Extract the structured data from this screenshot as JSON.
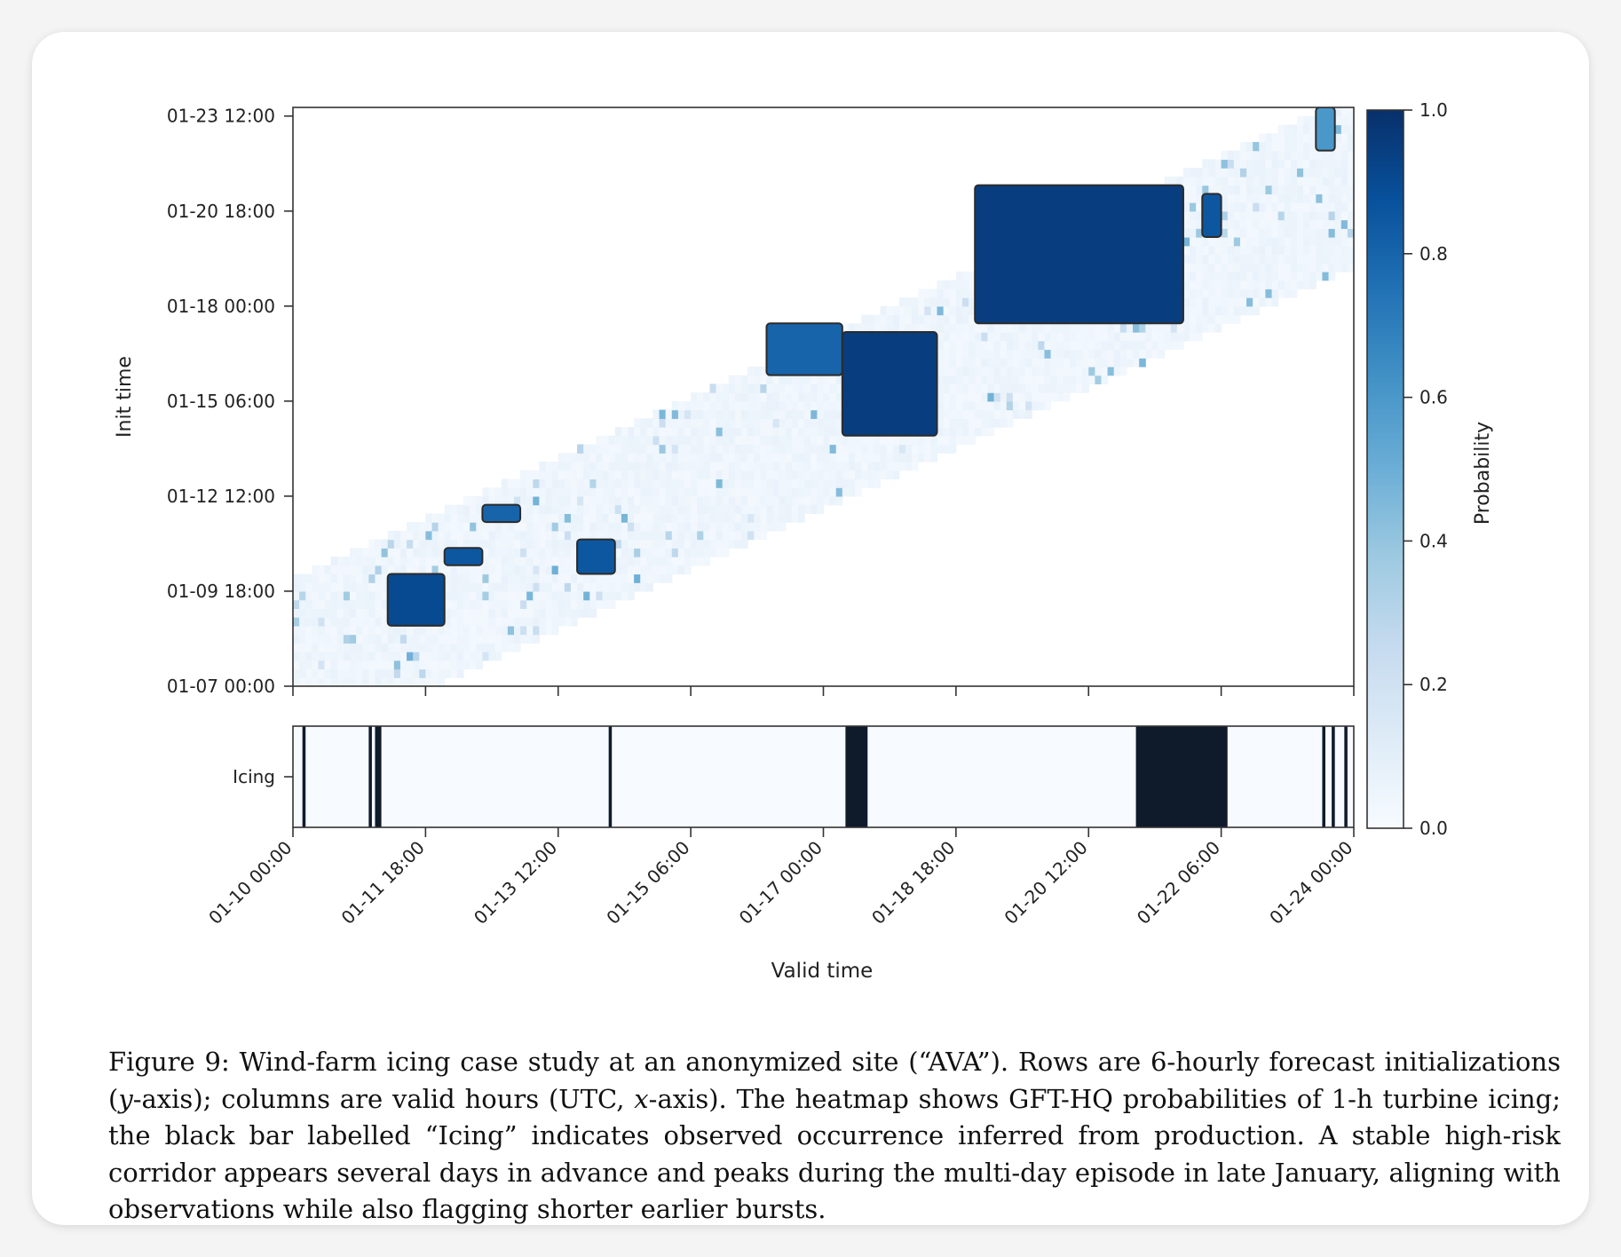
{
  "chart_data": {
    "type": "heatmap",
    "heatmap": {
      "ylabel": "Init time",
      "yticks": [
        "01-07 00:00",
        "01-09 18:00",
        "01-12 12:00",
        "01-15 06:00",
        "01-18 00:00",
        "01-20 18:00",
        "01-23 12:00"
      ],
      "ylim": [
        "01-07 00:00",
        "01-23 18:00"
      ],
      "init_step_hours": 6,
      "forecast_horizon_hours": [
        0,
        120
      ],
      "high_probability_regions": [
        {
          "valid": [
            "01-11 06:00",
            "01-12 00:00"
          ],
          "init": [
            "01-08 18:00",
            "01-10 06:00"
          ],
          "p": 0.9
        },
        {
          "valid": [
            "01-12 00:00",
            "01-12 12:00"
          ],
          "init": [
            "01-10 12:00",
            "01-11 00:00"
          ],
          "p": 0.85
        },
        {
          "valid": [
            "01-12 12:00",
            "01-13 00:00"
          ],
          "init": [
            "01-11 18:00",
            "01-12 06:00"
          ],
          "p": 0.8
        },
        {
          "valid": [
            "01-13 18:00",
            "01-14 06:00"
          ],
          "init": [
            "01-10 06:00",
            "01-11 06:00"
          ],
          "p": 0.85
        },
        {
          "valid": [
            "01-16 06:00",
            "01-17 06:00"
          ],
          "init": [
            "01-16 00:00",
            "01-17 12:00"
          ],
          "p": 0.8
        },
        {
          "valid": [
            "01-17 06:00",
            "01-18 12:00"
          ],
          "init": [
            "01-14 06:00",
            "01-17 06:00"
          ],
          "p": 0.95
        },
        {
          "valid": [
            "01-19 00:00",
            "01-21 18:00"
          ],
          "init": [
            "01-17 12:00",
            "01-21 12:00"
          ],
          "p": 0.95
        },
        {
          "valid": [
            "01-22 00:00",
            "01-22 06:00"
          ],
          "init": [
            "01-20 00:00",
            "01-21 06:00"
          ],
          "p": 0.85
        },
        {
          "valid": [
            "01-23 12:00",
            "01-23 18:00"
          ],
          "init": [
            "01-22 12:00",
            "01-23 18:00"
          ],
          "p": 0.6
        }
      ]
    },
    "observed": {
      "ytick": "Icing",
      "icing_intervals": [
        [
          "01-10 03:00",
          "01-10 04:00"
        ],
        [
          "01-11 00:00",
          "01-11 01:00"
        ],
        [
          "01-11 02:00",
          "01-11 04:00"
        ],
        [
          "01-14 04:00",
          "01-14 05:00"
        ],
        [
          "01-17 07:00",
          "01-17 14:00"
        ],
        [
          "01-21 03:00",
          "01-22 08:00"
        ],
        [
          "01-23 14:00",
          "01-23 15:00"
        ],
        [
          "01-23 17:00",
          "01-23 18:00"
        ],
        [
          "01-23 21:00",
          "01-23 22:00"
        ]
      ]
    },
    "xlabel": "Valid time",
    "xticks": [
      "01-10 00:00",
      "01-11 18:00",
      "01-13 12:00",
      "01-15 06:00",
      "01-17 00:00",
      "01-18 18:00",
      "01-20 12:00",
      "01-22 06:00",
      "01-24 00:00"
    ],
    "xlim": [
      "01-10 00:00",
      "01-24 00:00"
    ],
    "colorbar": {
      "label": "Probability",
      "ticks": [
        "0.0",
        "0.2",
        "0.4",
        "0.6",
        "0.8",
        "1.0"
      ],
      "range": [
        0,
        1
      ],
      "colors": [
        "#f7fbff",
        "#deebf7",
        "#c6dbef",
        "#9ecae1",
        "#6baed6",
        "#4292c6",
        "#2171b5",
        "#08519c",
        "#08306b"
      ]
    }
  },
  "caption": {
    "label": "Figure 9:",
    "p1": "Wind-farm icing case study at an anonymized site (“AVA”). Rows are 6-hourly forecast initializations (",
    "y_var": "y",
    "p2": "-axis); columns are valid hours (UTC, ",
    "x_var": "x",
    "p3": "-axis). The heatmap shows GFT-HQ probabilities of 1-h turbine icing; the black bar labelled “Icing” indicates observed occurrence inferred from production. A stable high-risk corridor appears several days in advance and peaks during the multi-day episode in late January, aligning with observations while also flagging shorter earlier bursts."
  },
  "colors": {
    "icing_bar": "#0f1a2b",
    "axis": "#333333",
    "card": "#ffffff"
  }
}
